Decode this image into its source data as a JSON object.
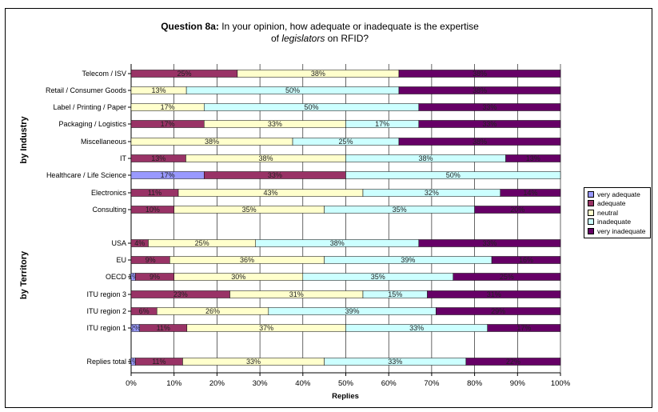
{
  "chart_data": {
    "type": "bar",
    "stacked": "percent",
    "orientation": "horizontal",
    "title_bold": "Question 8a:",
    "title_line1": " In your opinion, how adequate or inadequate is the expertise",
    "title_line2_pre": "of ",
    "title_line2_em": "legislators",
    "title_line2_post": " on RFID?",
    "xlabel": "Replies",
    "xlim": [
      0,
      100
    ],
    "xticks": [
      "0%",
      "10%",
      "20%",
      "30%",
      "40%",
      "50%",
      "60%",
      "70%",
      "80%",
      "90%",
      "100%"
    ],
    "group_labels": {
      "industry": "by Industry",
      "territory": "by Territory"
    },
    "series_names": [
      "very adequate",
      "adequate",
      "neutral",
      "inadequate",
      "very inadequate"
    ],
    "colors": [
      "#9999ff",
      "#993366",
      "#ffffcc",
      "#ccffff",
      "#660066"
    ],
    "legend_position": "right",
    "rows": [
      {
        "label": "Telecom / ISV",
        "values": [
          0,
          25,
          38,
          0,
          38
        ],
        "labels": [
          "",
          "25%",
          "38%",
          "",
          "38%"
        ]
      },
      {
        "label": "Retail / Consumer Goods",
        "values": [
          0,
          0,
          13,
          50,
          38
        ],
        "labels": [
          "",
          "",
          "13%",
          "50%",
          "38%"
        ]
      },
      {
        "label": "Label / Printing / Paper",
        "values": [
          0,
          0,
          17,
          50,
          33
        ],
        "labels": [
          "",
          "",
          "17%",
          "50%",
          "33%"
        ]
      },
      {
        "label": "Packaging / Logistics",
        "values": [
          0,
          17,
          33,
          17,
          33
        ],
        "labels": [
          "",
          "17%",
          "33%",
          "17%",
          "33%"
        ]
      },
      {
        "label": "Miscellaneous",
        "values": [
          0,
          0,
          38,
          25,
          38
        ],
        "labels": [
          "",
          "",
          "38%",
          "25%",
          "38%"
        ]
      },
      {
        "label": "IT",
        "values": [
          0,
          13,
          38,
          38,
          13
        ],
        "labels": [
          "",
          "13%",
          "38%",
          "38%",
          "13%"
        ]
      },
      {
        "label": "Healthcare / Life Science",
        "values": [
          17,
          33,
          0,
          50,
          0
        ],
        "labels": [
          "17%",
          "33%",
          "",
          "50%",
          ""
        ]
      },
      {
        "label": "Electronics",
        "values": [
          0,
          11,
          43,
          32,
          14
        ],
        "labels": [
          "",
          "11%",
          "43%",
          "32%",
          "14%"
        ]
      },
      {
        "label": "Consulting",
        "values": [
          0,
          10,
          35,
          35,
          20
        ],
        "labels": [
          "",
          "10%",
          "35%",
          "35%",
          "20%"
        ]
      },
      {
        "label": "USA",
        "values": [
          0,
          4,
          25,
          38,
          33
        ],
        "labels": [
          "",
          "4%",
          "25%",
          "38%",
          "33%"
        ]
      },
      {
        "label": "EU",
        "values": [
          0,
          9,
          36,
          39,
          16
        ],
        "labels": [
          "",
          "9%",
          "36%",
          "39%",
          "16%"
        ]
      },
      {
        "label": "OECD",
        "values": [
          1,
          9,
          30,
          35,
          25
        ],
        "labels": [
          "1%",
          "9%",
          "30%",
          "35%",
          "25%"
        ]
      },
      {
        "label": "ITU region 3",
        "values": [
          0,
          23,
          31,
          15,
          31
        ],
        "labels": [
          "",
          "23%",
          "31%",
          "15%",
          "31%"
        ]
      },
      {
        "label": "ITU region 2",
        "values": [
          0,
          6,
          26,
          39,
          29
        ],
        "labels": [
          "",
          "6%",
          "26%",
          "39%",
          "29%"
        ]
      },
      {
        "label": "ITU region 1",
        "values": [
          2,
          11,
          37,
          33,
          17
        ],
        "labels": [
          "2%",
          "11%",
          "37%",
          "33%",
          "17%"
        ]
      },
      {
        "label": "Replies total",
        "values": [
          1,
          11,
          33,
          33,
          22
        ],
        "labels": [
          "1%",
          "11%",
          "33%",
          "33%",
          "22%"
        ]
      }
    ]
  }
}
